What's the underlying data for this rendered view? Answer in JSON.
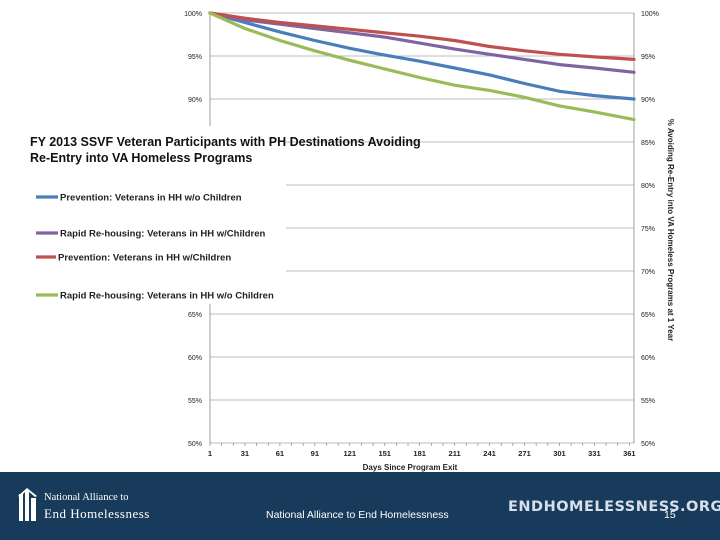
{
  "chart_data": {
    "type": "line",
    "title": [
      "FY 2013 SSVF Veteran Participants with PH Destinations Avoiding",
      "Re-Entry into VA Homeless Programs"
    ],
    "xlabel": "Days Since Program Exit",
    "ylabel": "% Avoiding Re-Entry into VA Homeless Programs at 1 Year",
    "xlim": [
      1,
      365
    ],
    "ylim": [
      50,
      100
    ],
    "x_ticks": [
      1,
      31,
      61,
      91,
      121,
      151,
      181,
      211,
      241,
      271,
      301,
      331,
      361
    ],
    "y_ticks": [
      100,
      95,
      90,
      85,
      80,
      75,
      70,
      65,
      60,
      55,
      50
    ],
    "y_tick_labels": [
      "100%",
      "95%",
      "90%",
      "85%",
      "80%",
      "75%",
      "70%",
      "65%",
      "60%",
      "55%",
      "50%"
    ],
    "y_tick_labels_left_visible": [
      "100%",
      "95%",
      "90%",
      "65%",
      "60%",
      "55%",
      "50%"
    ],
    "legend_position": "overlaid left, below title",
    "series": [
      {
        "name": "Prevention: Veterans in HH w/o Children",
        "color": "#4a7ebb",
        "x": [
          1,
          31,
          61,
          91,
          121,
          151,
          181,
          211,
          241,
          271,
          301,
          331,
          365
        ],
        "values": [
          100,
          98.9,
          97.8,
          96.8,
          95.9,
          95.1,
          94.4,
          93.6,
          92.8,
          91.8,
          90.9,
          90.4,
          90.0
        ]
      },
      {
        "name": "Rapid Re-housing: Veterans in HH w/Children",
        "color": "#8064a2",
        "x": [
          1,
          31,
          61,
          91,
          121,
          151,
          181,
          211,
          241,
          271,
          301,
          331,
          365
        ],
        "values": [
          100,
          99.2,
          98.7,
          98.2,
          97.7,
          97.2,
          96.5,
          95.8,
          95.2,
          94.6,
          94.0,
          93.6,
          93.1
        ]
      },
      {
        "name": "Prevention: Veterans in HH w/Children",
        "color": "#c0504d",
        "x": [
          1,
          31,
          61,
          91,
          121,
          151,
          181,
          211,
          241,
          271,
          301,
          331,
          365
        ],
        "values": [
          100,
          99.4,
          98.9,
          98.5,
          98.1,
          97.7,
          97.3,
          96.8,
          96.1,
          95.6,
          95.2,
          94.9,
          94.6
        ]
      },
      {
        "name": "Rapid Re-housing: Veterans in HH w/o Children",
        "color": "#9bbb59",
        "x": [
          1,
          31,
          61,
          91,
          121,
          151,
          181,
          211,
          241,
          271,
          301,
          331,
          365
        ],
        "values": [
          100,
          98.2,
          96.8,
          95.6,
          94.5,
          93.5,
          92.5,
          91.6,
          91.0,
          90.2,
          89.2,
          88.5,
          87.6
        ]
      }
    ]
  },
  "footer": {
    "org_line1": "National Alliance to",
    "org_line2": "End Homelessness",
    "center_text": "National Alliance to End Homelessness",
    "site": "ENDHOMELESSNESS.ORG",
    "slide_number": "15"
  },
  "colors": {
    "footer_bg": "#183b5c",
    "grid": "#a6a6a6"
  }
}
